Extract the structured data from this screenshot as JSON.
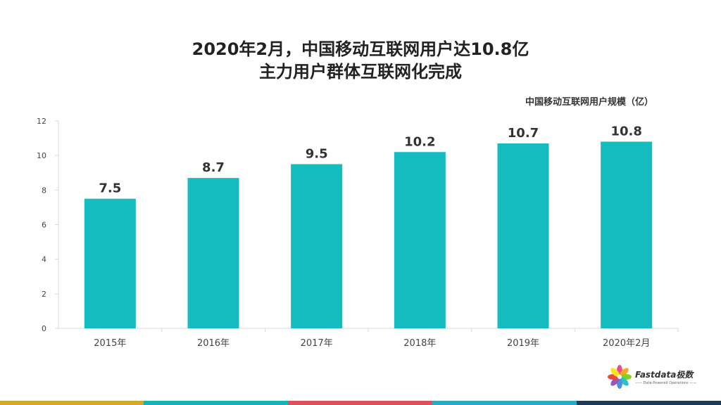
{
  "title": {
    "line1": "2020年2月，中国移动互联网用户达10.8亿",
    "line2": "主力用户群体互联网化完成"
  },
  "unit_label": "中国移动互联网用户规模（亿）",
  "logo": {
    "name": "Fastdata极数",
    "tagline": "—— Data-Powered Operations ——",
    "icon": "pinwheel-flower-icon",
    "petal_colors": [
      "#e84c8b",
      "#f5a623",
      "#7ed321",
      "#27c4c4",
      "#4a90e2",
      "#9b59b6",
      "#e74c3c",
      "#f8e71c"
    ]
  },
  "colors": {
    "bar": "#14bcbf",
    "axis": "#d9d9d9",
    "footer": [
      "#d4a928",
      "#13b4b7",
      "#e0505a",
      "#2ba7c8",
      "#1e3b55"
    ]
  },
  "chart_data": {
    "type": "bar",
    "categories": [
      "2015年",
      "2016年",
      "2017年",
      "2018年",
      "2019年",
      "2020年2月"
    ],
    "values": [
      7.5,
      8.7,
      9.5,
      10.2,
      10.7,
      10.8
    ],
    "value_labels": [
      "7.5",
      "8.7",
      "9.5",
      "10.2",
      "10.7",
      "10.8"
    ],
    "ylim": [
      0,
      12
    ],
    "yticks": [
      0,
      2,
      4,
      6,
      8,
      10,
      12
    ],
    "grid": false,
    "xlabel": "",
    "ylabel": ""
  }
}
